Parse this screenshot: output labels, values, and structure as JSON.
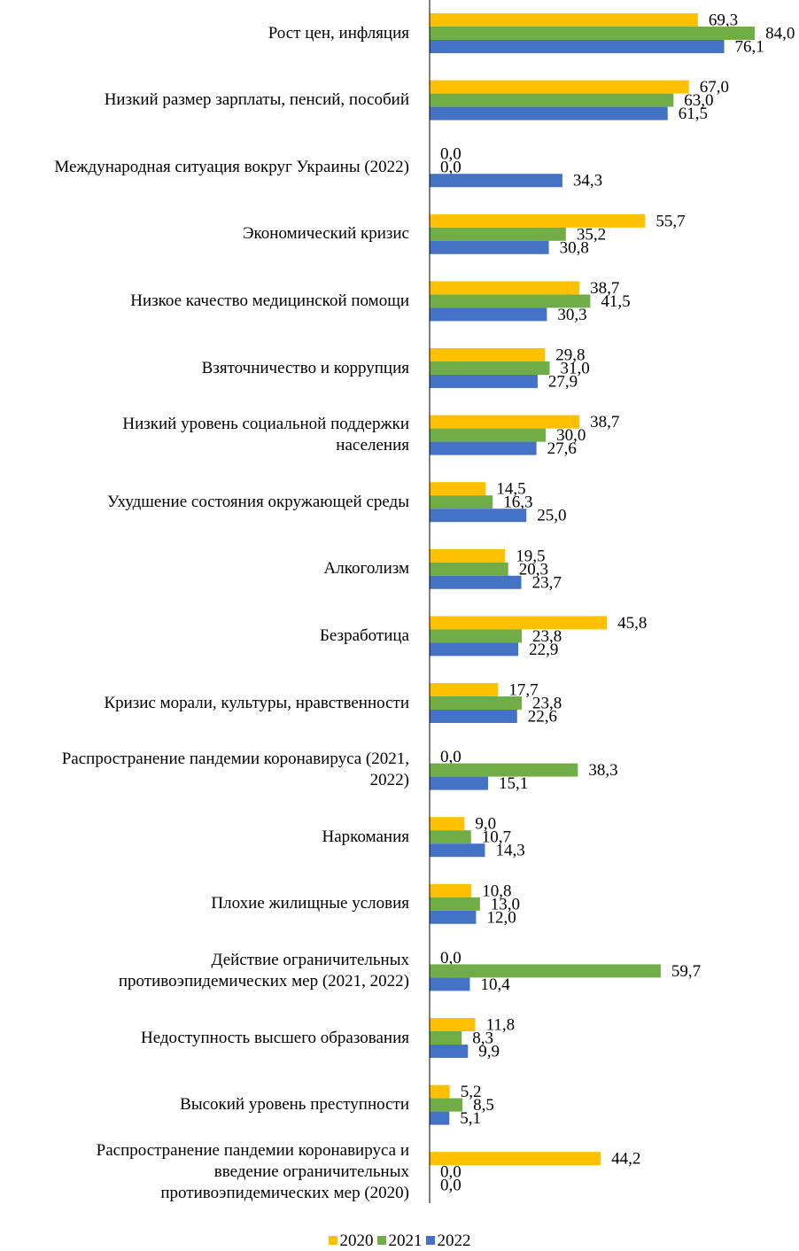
{
  "chart_data": {
    "type": "bar",
    "orientation": "horizontal",
    "title": "",
    "xlabel": "",
    "ylabel": "",
    "xlim": [
      0,
      85
    ],
    "grid": false,
    "legend_position": "bottom",
    "categories": [
      [
        "Рост цен, инфляция"
      ],
      [
        "Низкий размер зарплаты, пенсий, пособий"
      ],
      [
        "Международная ситуация вокруг Украины (2022)"
      ],
      [
        "Экономический кризис"
      ],
      [
        "Низкое качество медицинской помощи"
      ],
      [
        "Взяточничество и коррупция"
      ],
      [
        "Низкий уровень социальной поддержки",
        "населения"
      ],
      [
        "Ухудшение состояния окружающей среды"
      ],
      [
        "Алкоголизм"
      ],
      [
        "Безработица"
      ],
      [
        "Кризис морали, культуры, нравственности"
      ],
      [
        "Распространение пандемии коронавируса (2021,",
        "2022)"
      ],
      [
        "Наркомания"
      ],
      [
        "Плохие жилищные условия"
      ],
      [
        "Действие ограничительных",
        "противоэпидемических мер (2021, 2022)"
      ],
      [
        "Недоступность высшего образования"
      ],
      [
        "Высокий уровень преступности"
      ],
      [
        "Распространение пандемии коронавируса и",
        "введение ограничительных",
        "противоэпидемических мер (2020)"
      ]
    ],
    "series": [
      {
        "name": "2020",
        "color": "#FFC000",
        "values": [
          69.3,
          67.0,
          0.0,
          55.7,
          38.7,
          29.8,
          38.7,
          14.5,
          19.5,
          45.8,
          17.7,
          0.0,
          9.0,
          10.8,
          0.0,
          11.8,
          5.2,
          44.2
        ],
        "labels": [
          "69,3",
          "67,0",
          "0,0",
          "55,7",
          "38,7",
          "29,8",
          "38,7",
          "14,5",
          "19,5",
          "45,8",
          "17,7",
          "0,0",
          "9,0",
          "10,8",
          "0,0",
          "11,8",
          "5,2",
          "44,2"
        ]
      },
      {
        "name": "2021",
        "color": "#70AD47",
        "values": [
          84.0,
          63.0,
          0.0,
          35.2,
          41.5,
          31.0,
          30.0,
          16.3,
          20.3,
          23.8,
          23.8,
          38.3,
          10.7,
          13.0,
          59.7,
          8.3,
          8.5,
          0.0
        ],
        "labels": [
          "84,0",
          "63,0",
          "0,0",
          "35,2",
          "41,5",
          "31,0",
          "30,0",
          "16,3",
          "20,3",
          "23,8",
          "23,8",
          "38,3",
          "10,7",
          "13,0",
          "59,7",
          "8,3",
          "8,5",
          "0,0"
        ]
      },
      {
        "name": "2022",
        "color": "#4472C4",
        "values": [
          76.1,
          61.5,
          34.3,
          30.8,
          30.3,
          27.9,
          27.6,
          25.0,
          23.7,
          22.9,
          22.6,
          15.1,
          14.3,
          12.0,
          10.4,
          9.9,
          5.1,
          0.0
        ],
        "labels": [
          "76,1",
          "61,5",
          "34,3",
          "30,8",
          "30,3",
          "27,9",
          "27,6",
          "25,0",
          "23,7",
          "22,9",
          "22,6",
          "15,1",
          "14,3",
          "12,0",
          "10,4",
          "9,9",
          "5,1",
          "0,0"
        ]
      }
    ]
  }
}
